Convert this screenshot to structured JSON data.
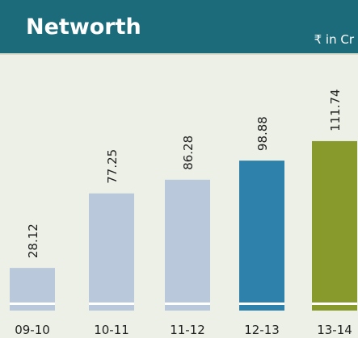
{
  "chart_data": {
    "type": "bar",
    "title": "Networth",
    "subtitle": "₹ in Cr",
    "categories": [
      "09-10",
      "10-11",
      "11-12",
      "12-13",
      "13-14"
    ],
    "values": [
      28.12,
      77.25,
      86.28,
      98.88,
      111.74
    ],
    "colors": [
      "#b9c9db",
      "#b9c9db",
      "#b9c9db",
      "#2e81aa",
      "#889a2b"
    ]
  }
}
